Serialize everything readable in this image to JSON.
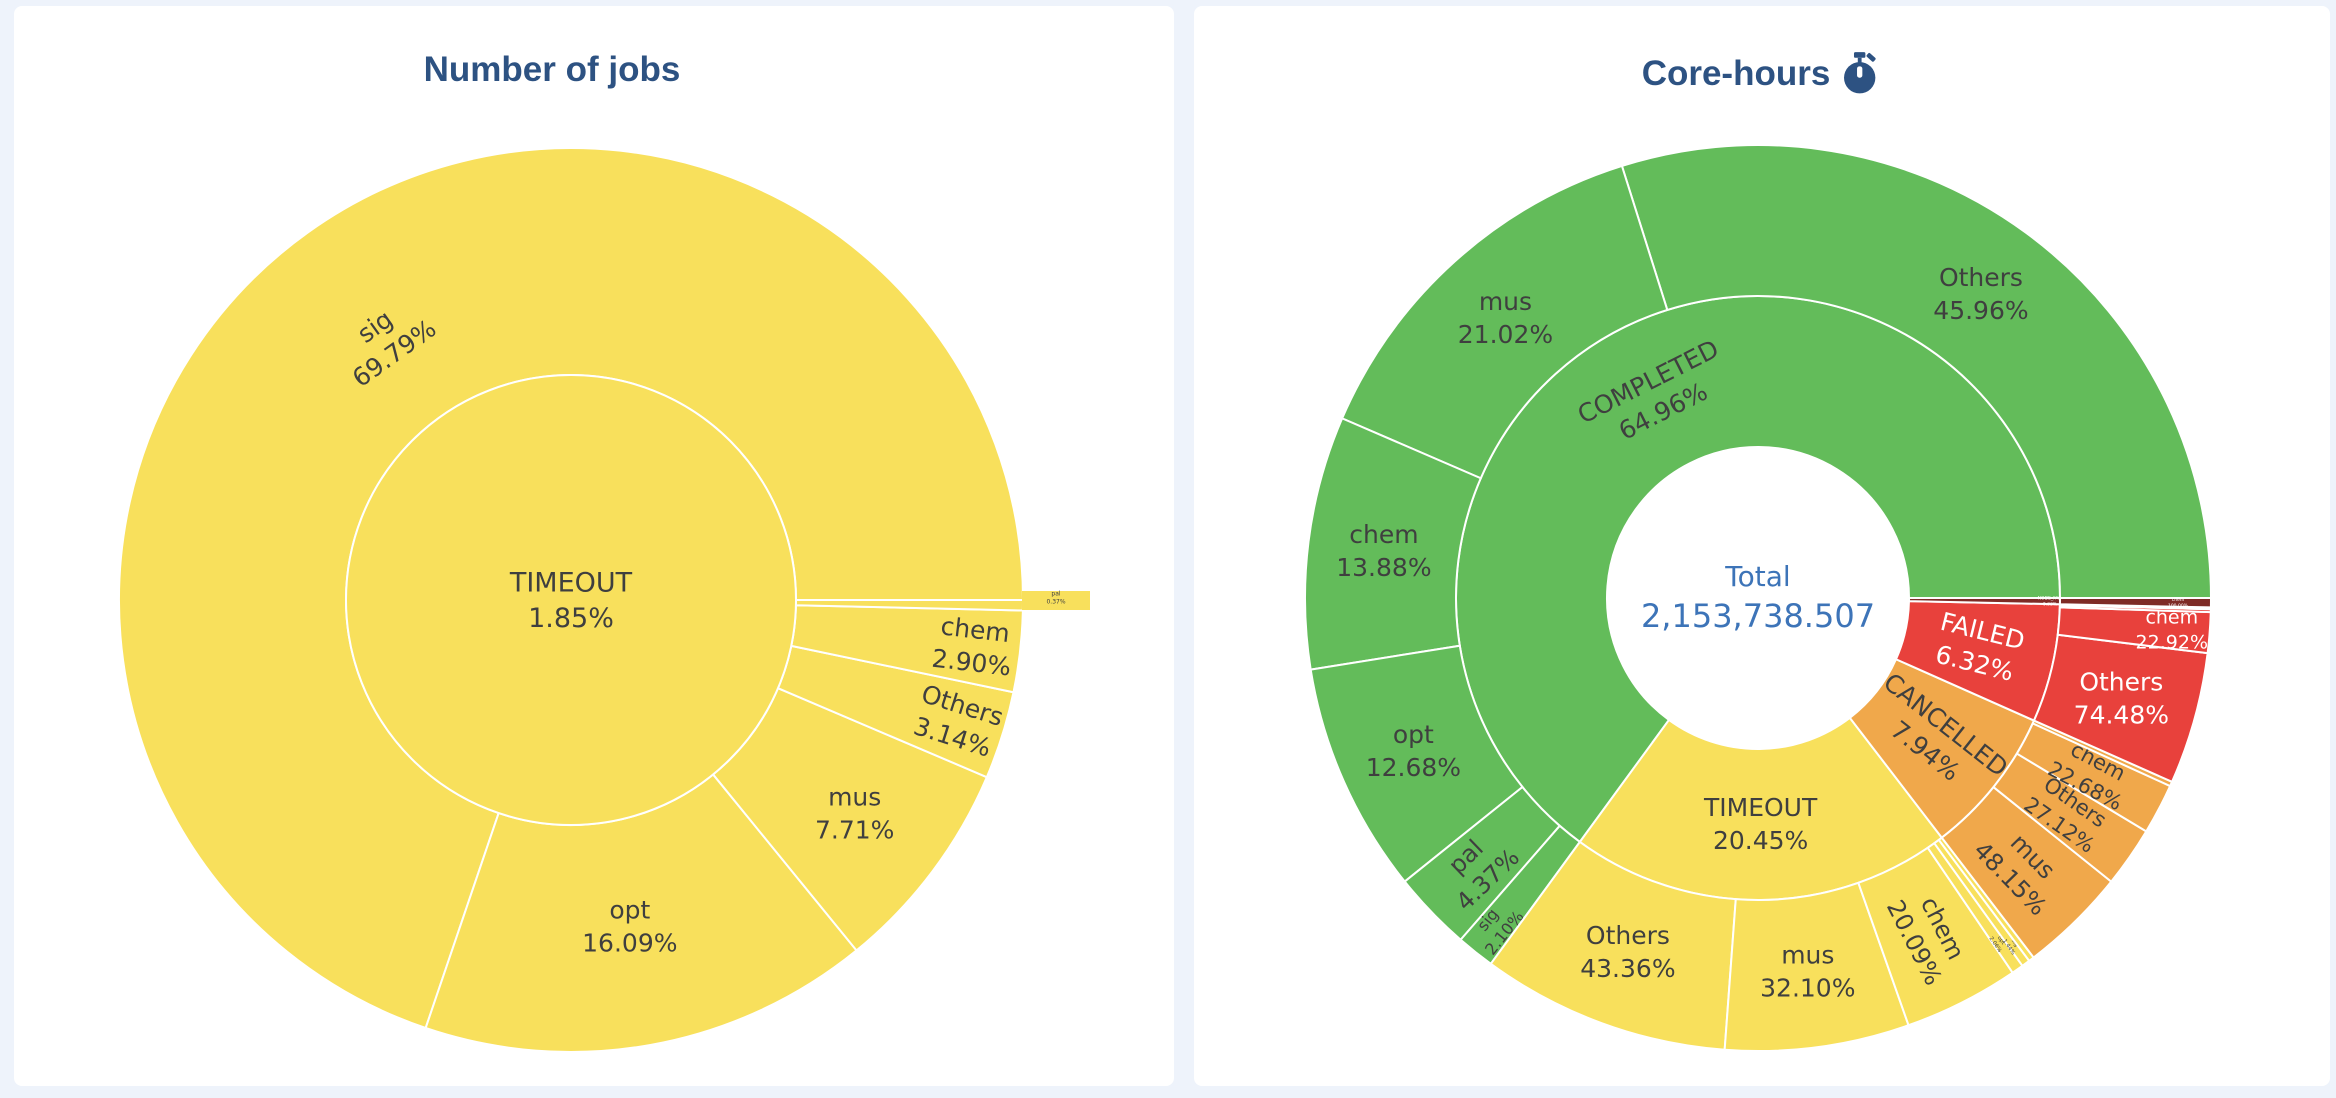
{
  "page": {
    "background_color": "#eef3fb",
    "card_color": "#ffffff",
    "title_color": "#2d5282",
    "label_color": "#3f3f3f",
    "total_color": "#3d74b8"
  },
  "chart_data": [
    {
      "type": "pie",
      "variant": "sunburst drilled into TIMEOUT (inner = status, outer ring = projects, percents are share of parent)",
      "title": "Number of jobs",
      "center": {
        "label": "TIMEOUT",
        "percent": 1.85
      },
      "color": "#f8e05c",
      "slices": [
        {
          "label": "sig",
          "percent": 69.79
        },
        {
          "label": "opt",
          "percent": 16.09
        },
        {
          "label": "mus",
          "percent": 7.71
        },
        {
          "label": "Others",
          "percent": 3.14
        },
        {
          "label": "chem",
          "percent": 2.9
        },
        {
          "label": "pal",
          "percent": 0.37
        }
      ]
    },
    {
      "type": "pie",
      "variant": "sunburst (inner ring = job status, outer ring = projects, percents are share of parent)",
      "title": "Core-hours",
      "title_icon": "stopwatch-icon",
      "center": {
        "label": "Total",
        "value": "2,153,738.507"
      },
      "statuses": [
        {
          "label": "COMPLETED",
          "percent": 64.96,
          "color": "#63bc5a",
          "text_color": "#3f3f3f",
          "children": [
            {
              "label": "Others",
              "percent": 45.96
            },
            {
              "label": "mus",
              "percent": 21.02
            },
            {
              "label": "chem",
              "percent": 13.88
            },
            {
              "label": "opt",
              "percent": 12.68
            },
            {
              "label": "pal",
              "percent": 4.37
            },
            {
              "label": "sig",
              "percent": 2.1
            }
          ]
        },
        {
          "label": "TIMEOUT",
          "percent": 20.45,
          "color": "#f8e05c",
          "text_color": "#3f3f3f",
          "children": [
            {
              "label": "Others",
              "percent": 43.36
            },
            {
              "label": "mus",
              "percent": 32.1
            },
            {
              "label": "chem",
              "percent": 20.09
            },
            {
              "label": "opt",
              "percent": 2.06
            },
            {
              "label": "sig",
              "percent": 1.44
            },
            {
              "label": "",
              "percent": 0.95
            }
          ]
        },
        {
          "label": "CANCELLED",
          "percent": 7.94,
          "color": "#f0a84b",
          "text_color": "#3f3f3f",
          "children": [
            {
              "label": "mus",
              "percent": 48.15
            },
            {
              "label": "Others",
              "percent": 27.12
            },
            {
              "label": "chem",
              "percent": 22.68
            },
            {
              "label": "",
              "percent": 2.05
            }
          ]
        },
        {
          "label": "FAILED",
          "percent": 6.32,
          "color": "#e8413c",
          "text_color": "#ffffff",
          "children": [
            {
              "label": "Others",
              "percent": 74.48
            },
            {
              "label": "chem",
              "percent": 22.92
            },
            {
              "label": "",
              "percent": 1.6
            },
            {
              "label": "",
              "percent": 1.0
            }
          ]
        },
        {
          "label": "NODE_FAIL",
          "percent": 0.33,
          "color": "#7e2b26",
          "text_color": "#ffffff",
          "children": [
            {
              "label": "chem",
              "percent": 100.0
            }
          ]
        }
      ]
    }
  ]
}
